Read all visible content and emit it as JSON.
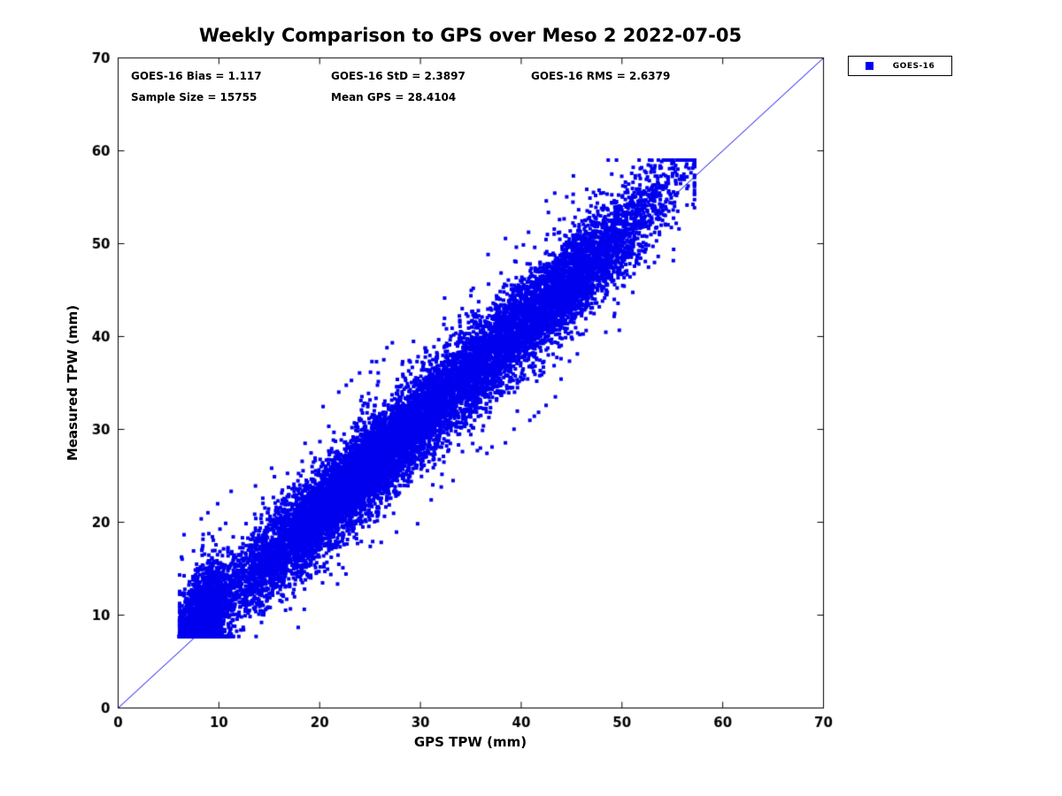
{
  "chart_data": {
    "type": "scatter",
    "title": "Weekly Comparison to GPS over Meso 2 2022-07-05",
    "xlabel": "GPS TPW (mm)",
    "ylabel": "Measured TPW (mm)",
    "xlim": [
      0,
      70
    ],
    "ylim": [
      0,
      70
    ],
    "x_ticks": [
      0,
      10,
      20,
      30,
      40,
      50,
      60,
      70
    ],
    "y_ticks": [
      0,
      10,
      20,
      30,
      40,
      50,
      60,
      70
    ],
    "grid": false,
    "frame_color": "#000000",
    "marker_color": "#0000ee",
    "stats": {
      "bias": 1.117,
      "std": 2.3897,
      "rms": 2.6379,
      "sample_size": 15755,
      "mean_gps": 28.4104
    },
    "stats_text": {
      "bias": "GOES-16 Bias = 1.117",
      "std": "GOES-16 StD = 2.3897",
      "rms": "GOES-16 RMS = 2.6379",
      "sample_size": "Sample Size = 15755",
      "mean_gps": "Mean GPS = 28.4104"
    },
    "legend": {
      "position": "top-right-outside",
      "entries": [
        {
          "label": "GOES-16",
          "marker": "square",
          "color": "#0000ee"
        }
      ]
    },
    "reference_line": {
      "from": [
        0,
        0
      ],
      "to": [
        70,
        70
      ],
      "color": "#0000ee"
    },
    "scatter_spec": {
      "comment": "Dense point cloud along 1:1 line; parameters taken from on-screen stats",
      "marker": "square",
      "color": "#0000ee",
      "n_points": 15755,
      "seed": 20220705,
      "x_mixture": [
        {
          "w": 0.16,
          "mean": 8.4,
          "sd": 1.2,
          "clip": [
            6.1,
            12.0
          ]
        },
        {
          "w": 0.54,
          "mean": 24.0,
          "sd": 7.5,
          "clip": [
            9.0,
            46.0
          ]
        },
        {
          "w": 0.3,
          "mean": 43.0,
          "sd": 5.8,
          "clip": [
            28.0,
            57.2
          ]
        }
      ],
      "y_bias": 1.117,
      "y_std": 2.3897,
      "outlier_rate": 0.025,
      "outlier_scale": 2.5,
      "max_dev": 11,
      "y_clip": [
        7.7,
        59.0
      ]
    }
  }
}
